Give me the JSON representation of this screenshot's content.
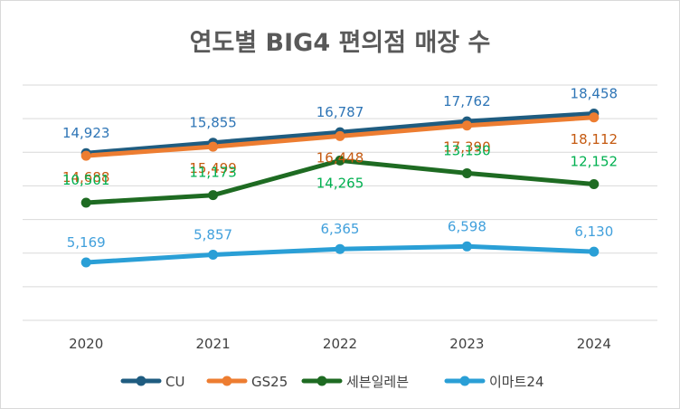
{
  "chart_data": {
    "type": "line",
    "title": "연도별 BIG4 편의점 매장 수",
    "categories": [
      "2020",
      "2021",
      "2022",
      "2023",
      "2024"
    ],
    "ylim": [
      0,
      21000
    ],
    "grid": true,
    "legend": "bottom",
    "series": [
      {
        "name": "CU",
        "color": "#1f5c80",
        "values": [
          14923,
          15855,
          16787,
          17762,
          18458
        ],
        "labels": [
          "14,923",
          "15,855",
          "16,787",
          "17,762",
          "18,458"
        ],
        "label_color": "#2e75b6",
        "label_pos": "above"
      },
      {
        "name": "GS25",
        "color": "#ed7d31",
        "values": [
          14688,
          15499,
          16448,
          17390,
          18112
        ],
        "labels": [
          "14,688",
          "15,499",
          "16,448",
          "17,390",
          "18,112"
        ],
        "label_color": "#c55a11",
        "label_pos": "below"
      },
      {
        "name": "세븐일레븐",
        "color": "#1e6b22",
        "values": [
          10501,
          11173,
          14265,
          13130,
          12152
        ],
        "labels": [
          "10,501",
          "11,173",
          "14,265",
          "13,130",
          "12,152"
        ],
        "label_color": "#00b050",
        "label_pos": "mixed"
      },
      {
        "name": "이마트24",
        "color": "#2a9fd6",
        "values": [
          5169,
          5857,
          6365,
          6598,
          6130
        ],
        "labels": [
          "5,169",
          "5,857",
          "6,365",
          "6,598",
          "6,130"
        ],
        "label_color": "#41a0dc",
        "label_pos": "above"
      }
    ]
  }
}
